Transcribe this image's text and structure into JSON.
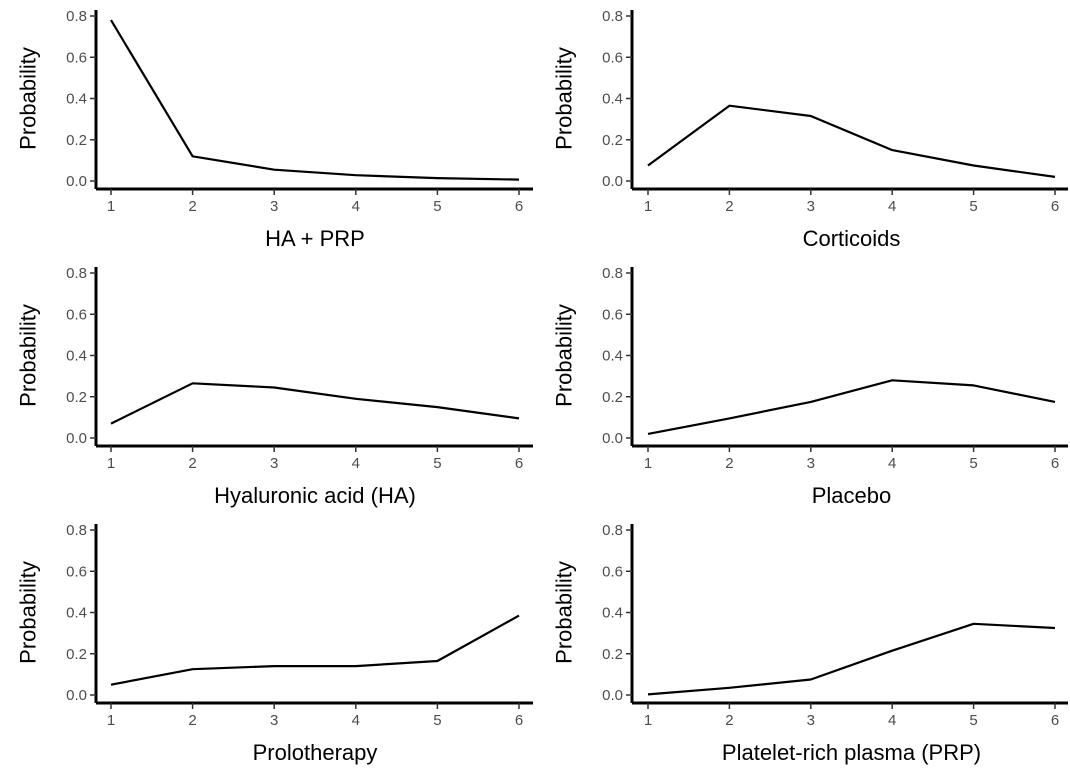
{
  "chart_data": [
    {
      "type": "line",
      "xlabel": "HA + PRP",
      "ylabel": "Probability",
      "x": [
        1,
        2,
        3,
        4,
        5,
        6
      ],
      "series": [
        {
          "values": [
            0.78,
            0.12,
            0.055,
            0.028,
            0.014,
            0.007
          ]
        }
      ],
      "xticks": [
        "1",
        "2",
        "3",
        "4",
        "5",
        "6"
      ],
      "yticks": [
        "0.0",
        "0.2",
        "0.4",
        "0.6",
        "0.8"
      ],
      "ylim": [
        0,
        0.8
      ],
      "grid": false,
      "line_color": "#000000"
    },
    {
      "type": "line",
      "xlabel": "Corticoids",
      "ylabel": "Probability",
      "x": [
        1,
        2,
        3,
        4,
        5,
        6
      ],
      "series": [
        {
          "values": [
            0.075,
            0.365,
            0.315,
            0.15,
            0.075,
            0.02
          ]
        }
      ],
      "xticks": [
        "1",
        "2",
        "3",
        "4",
        "5",
        "6"
      ],
      "yticks": [
        "0.0",
        "0.2",
        "0.4",
        "0.6",
        "0.8"
      ],
      "ylim": [
        0,
        0.8
      ],
      "grid": false,
      "line_color": "#000000"
    },
    {
      "type": "line",
      "xlabel": "Hyaluronic acid (HA)",
      "ylabel": "Probability",
      "x": [
        1,
        2,
        3,
        4,
        5,
        6
      ],
      "series": [
        {
          "values": [
            0.07,
            0.265,
            0.245,
            0.19,
            0.15,
            0.095
          ]
        }
      ],
      "xticks": [
        "1",
        "2",
        "3",
        "4",
        "5",
        "6"
      ],
      "yticks": [
        "0.0",
        "0.2",
        "0.4",
        "0.6",
        "0.8"
      ],
      "ylim": [
        0,
        0.8
      ],
      "grid": false,
      "line_color": "#000000"
    },
    {
      "type": "line",
      "xlabel": "Placebo",
      "ylabel": "Probability",
      "x": [
        1,
        2,
        3,
        4,
        5,
        6
      ],
      "series": [
        {
          "values": [
            0.02,
            0.095,
            0.175,
            0.28,
            0.255,
            0.175
          ]
        }
      ],
      "xticks": [
        "1",
        "2",
        "3",
        "4",
        "5",
        "6"
      ],
      "yticks": [
        "0.0",
        "0.2",
        "0.4",
        "0.6",
        "0.8"
      ],
      "ylim": [
        0,
        0.8
      ],
      "grid": false,
      "line_color": "#000000"
    },
    {
      "type": "line",
      "xlabel": "Prolotherapy",
      "ylabel": "Probability",
      "x": [
        1,
        2,
        3,
        4,
        5,
        6
      ],
      "series": [
        {
          "values": [
            0.05,
            0.125,
            0.14,
            0.14,
            0.165,
            0.385
          ]
        }
      ],
      "xticks": [
        "1",
        "2",
        "3",
        "4",
        "5",
        "6"
      ],
      "yticks": [
        "0.0",
        "0.2",
        "0.4",
        "0.6",
        "0.8"
      ],
      "ylim": [
        0,
        0.8
      ],
      "grid": false,
      "line_color": "#000000"
    },
    {
      "type": "line",
      "xlabel": "Platelet-rich plasma (PRP)",
      "ylabel": "Probability",
      "x": [
        1,
        2,
        3,
        4,
        5,
        6
      ],
      "series": [
        {
          "values": [
            0.003,
            0.035,
            0.075,
            0.215,
            0.345,
            0.325
          ]
        }
      ],
      "xticks": [
        "1",
        "2",
        "3",
        "4",
        "5",
        "6"
      ],
      "yticks": [
        "0.0",
        "0.2",
        "0.4",
        "0.6",
        "0.8"
      ],
      "ylim": [
        0,
        0.8
      ],
      "grid": false,
      "line_color": "#000000"
    }
  ]
}
